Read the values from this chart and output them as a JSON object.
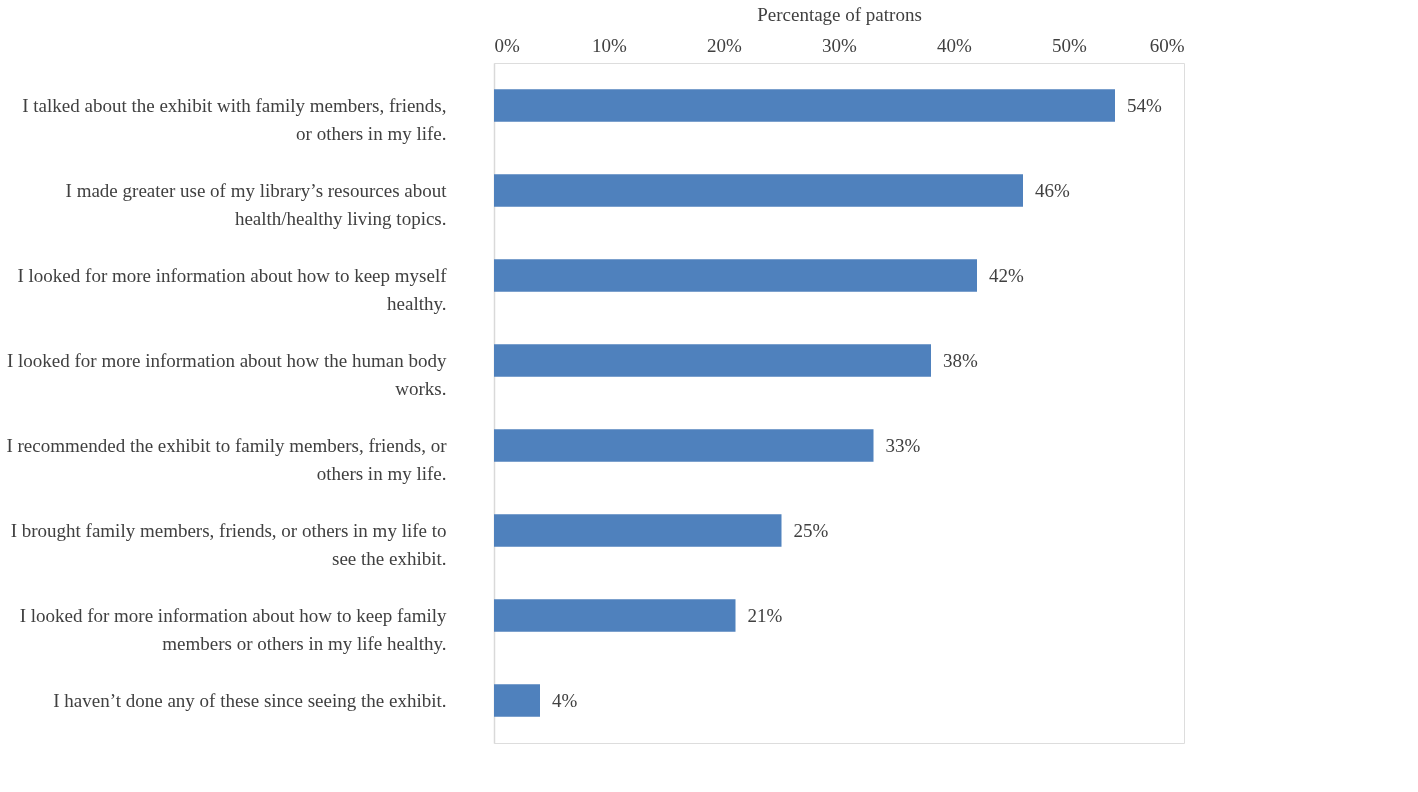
{
  "chart_data": {
    "type": "bar",
    "orientation": "horizontal",
    "xlabel": "Percentage of patrons",
    "categories": [
      "I talked about the exhibit with family members, friends, or others in my life.",
      "I made greater use of my library’s resources about health/healthy living topics.",
      "I looked for more information about how to keep myself healthy.",
      "I looked for more information about how the human body works.",
      "I recommended the exhibit to family members, friends, or others in my life.",
      "I brought family members, friends, or others in my life to see the exhibit.",
      "I looked for more information about how to keep family members or others in my life healthy.",
      "I haven’t done any of these since seeing the exhibit."
    ],
    "values": [
      54,
      46,
      42,
      38,
      33,
      25,
      21,
      4
    ],
    "value_labels": [
      "54%",
      "46%",
      "42%",
      "38%",
      "33%",
      "25%",
      "21%",
      "4%"
    ],
    "color": "#4f81bd",
    "xlim": [
      0,
      60
    ],
    "xticks": [
      {
        "value": 0,
        "label": "0%"
      },
      {
        "value": 10,
        "label": "10%"
      },
      {
        "value": 20,
        "label": "20%"
      },
      {
        "value": 30,
        "label": "30%"
      },
      {
        "value": 40,
        "label": "40%"
      },
      {
        "value": 50,
        "label": "50%"
      },
      {
        "value": 60,
        "label": "60%"
      }
    ],
    "tick_labels": "xy"
  }
}
